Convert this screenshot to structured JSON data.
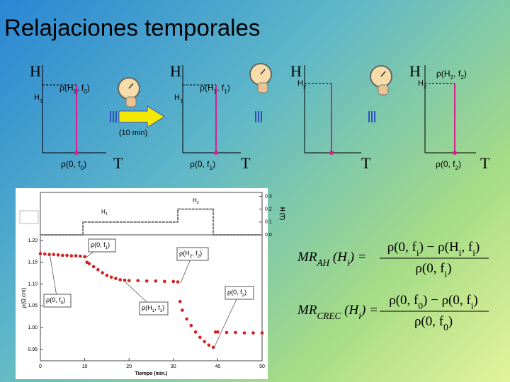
{
  "title": "Relajaciones temporales",
  "diagrams": [
    {
      "H": "H",
      "level": [
        "H",
        "1"
      ],
      "rho_field": [
        "ρ(H",
        "1",
        ", f",
        "0",
        ")"
      ],
      "rho_zero": [
        "ρ(0, f",
        "0",
        ")"
      ],
      "T": "T"
    },
    {
      "H": "H",
      "level": [
        "H",
        "1"
      ],
      "rho_field": [
        "ρ(H",
        "1",
        ", f",
        "1",
        ")"
      ],
      "rho_zero": [
        "ρ(0, f",
        "1",
        ")"
      ],
      "T": "T"
    },
    {
      "H": "H",
      "level": [
        "H",
        "2"
      ],
      "T": "T"
    },
    {
      "H": "H",
      "level": [
        "H",
        "2"
      ],
      "rho_field": [
        "ρ(H",
        "2",
        ", f",
        "2",
        ")"
      ],
      "rho_zero": [
        "ρ(0, f",
        "2",
        ")"
      ],
      "T": "T"
    }
  ],
  "interval": "(10 min)",
  "plot": {
    "xlabel": "Tiempo (min.)",
    "ylabel": "ρ(Ω.cm)",
    "y2label": "H (T)",
    "xlim": [
      0,
      50
    ],
    "xticks": [
      0,
      10,
      20,
      30,
      40,
      50
    ],
    "ylim": [
      0.924,
      1.213
    ],
    "yticks": [
      {
        "value": 0.95,
        "label": "0.95"
      },
      {
        "value": 1.0,
        "label": "1.00"
      },
      {
        "value": 1.05,
        "label": "1.05"
      },
      {
        "value": 1.1,
        "label": "1.10"
      },
      {
        "value": 1.15,
        "label": "1.15"
      },
      {
        "value": 1.2,
        "label": "1.20"
      }
    ],
    "y2lim": [
      0,
      0.33
    ],
    "y2ticks": [
      {
        "value": 0,
        "label": "0.0"
      },
      0.1,
      0.2,
      0.3
    ],
    "field_labels": [
      [
        "H",
        "1"
      ],
      [
        "H",
        "2"
      ]
    ],
    "field": {
      "color": "#777777",
      "x": [
        0,
        9.6,
        9.6,
        31,
        31,
        39,
        39,
        50
      ],
      "values": [
        0,
        0,
        0.1,
        0.1,
        0.2,
        0.2,
        0,
        0
      ]
    },
    "resistivity": {
      "color": "#d42020",
      "x": [
        0,
        1,
        2,
        3,
        4,
        5,
        6,
        7,
        8,
        9,
        10,
        10.5,
        11,
        12,
        13,
        14,
        15,
        16,
        17,
        18,
        19,
        20,
        22,
        24,
        26,
        28,
        30,
        31,
        31.5,
        32,
        33,
        34,
        35,
        36,
        37,
        38,
        39,
        39.5,
        40,
        42,
        44,
        46,
        48,
        50
      ],
      "values": [
        1.17,
        1.169,
        1.168,
        1.168,
        1.167,
        1.166,
        1.166,
        1.165,
        1.165,
        1.164,
        1.163,
        1.15,
        1.147,
        1.14,
        1.133,
        1.126,
        1.12,
        1.116,
        1.113,
        1.11,
        1.109,
        1.108,
        1.108,
        1.107,
        1.107,
        1.106,
        1.106,
        1.105,
        1.06,
        1.04,
        1.02,
        1.005,
        0.99,
        0.978,
        0.968,
        0.96,
        0.955,
        0.99,
        0.99,
        0.989,
        0.989,
        0.988,
        0.988,
        0.988
      ]
    },
    "annotations": [
      [
        "ρ(0, f",
        "1",
        ")"
      ],
      [
        "ρ(H",
        "2",
        ", f",
        "2",
        ")"
      ],
      [
        "ρ(0, f",
        "0",
        ")"
      ],
      [
        "ρ(H",
        "1",
        ", f",
        "1",
        ")"
      ],
      [
        "ρ(0, f",
        "2",
        ")"
      ]
    ]
  },
  "formulas": [
    {
      "lhs": [
        "MR",
        "AH",
        " (H",
        "i",
        ") ="
      ],
      "numerator": [
        "ρ(0, f",
        "i",
        ") − ρ(H",
        "i",
        ", f",
        "i",
        ")"
      ],
      "denominator": [
        "ρ(0, f",
        "i",
        ")"
      ]
    },
    {
      "lhs": [
        "MR",
        "CREC",
        " (H",
        "i",
        ") ="
      ],
      "numerator": [
        "ρ(0, f",
        "0",
        ") − ρ(0, f",
        "i",
        ")"
      ],
      "denominator": [
        "ρ(0, f",
        "0",
        ")"
      ]
    }
  ]
}
